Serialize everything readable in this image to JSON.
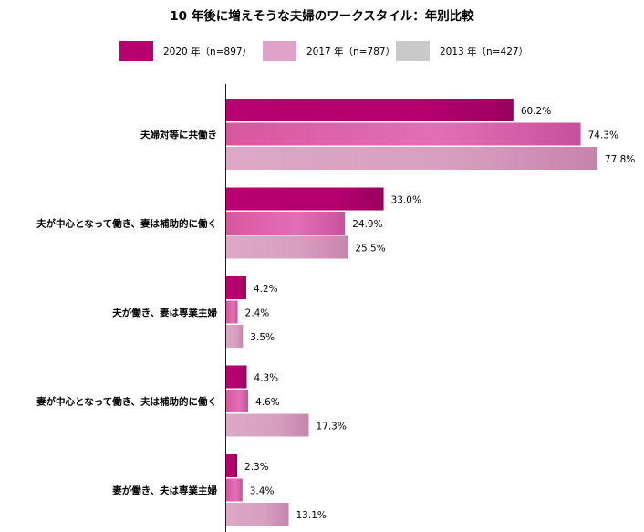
{
  "chart_data": {
    "type": "bar",
    "orientation": "horizontal",
    "title": "10 年後に増えそうな夫婦のワークスタイル：年別比較",
    "unit": "%",
    "categories": [
      "夫婦対等に共働き",
      "夫が中心となって働き、妻は補助的に働く",
      "夫が働き、妻は専業主婦",
      "妻が中心となって働き、夫は補助的に働く",
      "妻が働き、夫は専業主婦"
    ],
    "series": [
      {
        "name": "2020 年（n=897）",
        "color": "#b5006e",
        "values": [
          60.2,
          33.0,
          4.2,
          4.3,
          2.3
        ]
      },
      {
        "name": "2017 年（n=787）",
        "color": "#d65aa8",
        "values": [
          74.3,
          24.9,
          2.4,
          4.6,
          3.4
        ]
      },
      {
        "name": "2013 年（n=427）",
        "color": "#c9c9c9",
        "values": [
          77.8,
          25.5,
          3.5,
          17.3,
          13.1
        ]
      }
    ],
    "bar_colors_2013": "#d79bbc",
    "xlim": [
      0,
      100
    ],
    "legend_position": "top",
    "grid": false
  }
}
